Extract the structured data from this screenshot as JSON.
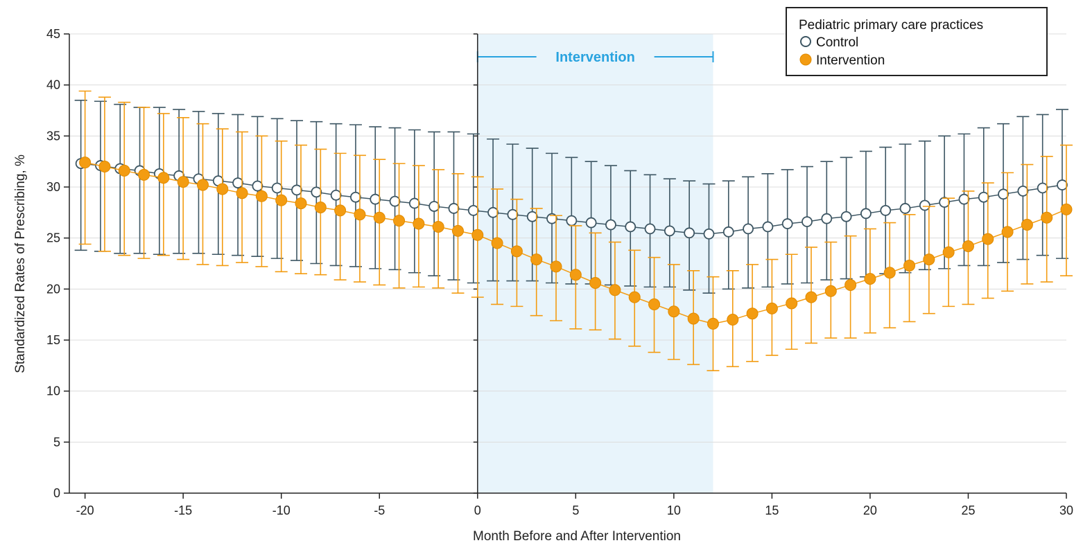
{
  "chart_data": {
    "type": "line",
    "xlabel": "Month Before and After Intervention",
    "ylabel": "Standardized Rates of Prescribing, %",
    "xlim": [
      -20.8,
      30
    ],
    "ylim": [
      0,
      45
    ],
    "xticks": [
      -20,
      -15,
      -10,
      -5,
      0,
      5,
      10,
      15,
      20,
      25,
      30
    ],
    "xtick_labels": [
      "-20",
      "-15",
      "-10",
      "-5",
      "0",
      "5",
      "10",
      "15",
      "20",
      "25",
      "30"
    ],
    "yticks": [
      0,
      5,
      10,
      15,
      20,
      25,
      30,
      35,
      40,
      45
    ],
    "ytick_labels": [
      "0",
      "5",
      "10",
      "15",
      "20",
      "25",
      "30",
      "35",
      "40",
      "45"
    ],
    "grid": "horizontal",
    "intervention_band": {
      "start": 0,
      "end": 12,
      "label": "Intervention"
    },
    "legend": {
      "title": "Pediatric primary care practices",
      "position": "top-right",
      "entries": [
        "Control",
        "Intervention"
      ]
    },
    "x": [
      -20,
      -19,
      -18,
      -17,
      -16,
      -15,
      -14,
      -13,
      -12,
      -11,
      -10,
      -9,
      -8,
      -7,
      -6,
      -5,
      -4,
      -3,
      -2,
      -1,
      0,
      1,
      2,
      3,
      4,
      5,
      6,
      7,
      8,
      9,
      10,
      11,
      12,
      13,
      14,
      15,
      16,
      17,
      18,
      19,
      20,
      21,
      22,
      23,
      24,
      25,
      26,
      27,
      28,
      29,
      30
    ],
    "series": [
      {
        "name": "Control",
        "marker": "open-circle",
        "color": "#3d5663",
        "values": [
          32.3,
          32.1,
          31.8,
          31.6,
          31.3,
          31.1,
          30.8,
          30.6,
          30.4,
          30.1,
          29.9,
          29.7,
          29.5,
          29.2,
          29.0,
          28.8,
          28.6,
          28.4,
          28.1,
          27.9,
          27.7,
          27.5,
          27.3,
          27.1,
          26.9,
          26.7,
          26.5,
          26.3,
          26.1,
          25.9,
          25.7,
          25.5,
          25.4,
          25.6,
          25.9,
          26.1,
          26.4,
          26.6,
          26.9,
          27.1,
          27.4,
          27.7,
          27.9,
          28.2,
          28.5,
          28.8,
          29.0,
          29.3,
          29.6,
          29.9,
          30.2
        ],
        "lower": [
          23.8,
          23.7,
          23.5,
          23.5,
          23.4,
          23.5,
          23.5,
          23.4,
          23.3,
          23.2,
          23.0,
          22.8,
          22.5,
          22.3,
          22.2,
          22.0,
          21.9,
          21.6,
          21.3,
          20.9,
          20.6,
          20.8,
          20.8,
          20.8,
          20.6,
          20.5,
          20.5,
          20.4,
          20.3,
          20.2,
          20.2,
          19.9,
          19.6,
          20.0,
          20.1,
          20.2,
          20.5,
          20.6,
          20.9,
          21.0,
          21.2,
          21.5,
          21.6,
          21.9,
          22.0,
          22.3,
          22.3,
          22.6,
          22.9,
          23.3,
          23.0
        ],
        "upper": [
          38.5,
          38.4,
          38.1,
          37.8,
          37.8,
          37.6,
          37.4,
          37.2,
          37.1,
          36.9,
          36.7,
          36.5,
          36.4,
          36.2,
          36.1,
          35.9,
          35.8,
          35.6,
          35.4,
          35.4,
          35.2,
          34.7,
          34.2,
          33.8,
          33.3,
          32.9,
          32.5,
          32.1,
          31.6,
          31.2,
          30.8,
          30.6,
          30.3,
          30.6,
          31.0,
          31.3,
          31.7,
          32.0,
          32.5,
          32.9,
          33.5,
          33.9,
          34.2,
          34.5,
          35.0,
          35.2,
          35.8,
          36.2,
          36.9,
          37.1,
          37.6
        ]
      },
      {
        "name": "Intervention",
        "marker": "filled-circle",
        "color": "#f39c12",
        "values": [
          32.4,
          32.0,
          31.6,
          31.2,
          30.9,
          30.5,
          30.2,
          29.8,
          29.4,
          29.1,
          28.7,
          28.4,
          28.0,
          27.7,
          27.3,
          27.0,
          26.7,
          26.4,
          26.1,
          25.7,
          25.3,
          24.5,
          23.7,
          22.9,
          22.2,
          21.4,
          20.6,
          19.9,
          19.2,
          18.5,
          17.8,
          17.1,
          16.6,
          17.0,
          17.6,
          18.1,
          18.6,
          19.2,
          19.8,
          20.4,
          21.0,
          21.6,
          22.3,
          22.9,
          23.6,
          24.2,
          24.9,
          25.6,
          26.3,
          27.0,
          27.8
        ],
        "lower": [
          24.4,
          23.7,
          23.3,
          23.0,
          23.3,
          22.9,
          22.4,
          22.3,
          22.6,
          22.2,
          21.7,
          21.5,
          21.4,
          20.9,
          20.7,
          20.4,
          20.1,
          20.2,
          20.1,
          19.6,
          19.2,
          18.5,
          18.3,
          17.4,
          16.9,
          16.1,
          16.0,
          15.1,
          14.4,
          13.8,
          13.1,
          12.6,
          12.0,
          12.4,
          12.9,
          13.5,
          14.1,
          14.7,
          15.2,
          15.2,
          15.7,
          16.2,
          16.8,
          17.6,
          18.3,
          18.5,
          19.1,
          19.8,
          20.5,
          20.7,
          21.3
        ],
        "upper": [
          39.4,
          38.8,
          38.3,
          37.8,
          37.2,
          36.8,
          36.2,
          35.7,
          35.4,
          35.0,
          34.5,
          34.1,
          33.7,
          33.3,
          33.1,
          32.7,
          32.3,
          32.1,
          31.7,
          31.3,
          31.0,
          29.8,
          28.8,
          27.9,
          27.2,
          26.2,
          25.5,
          24.6,
          23.8,
          23.1,
          22.4,
          21.8,
          21.2,
          21.8,
          22.4,
          22.9,
          23.4,
          24.1,
          24.6,
          25.2,
          25.9,
          26.5,
          27.3,
          28.1,
          28.9,
          29.6,
          30.4,
          31.4,
          32.2,
          33.0,
          34.1
        ]
      }
    ]
  }
}
